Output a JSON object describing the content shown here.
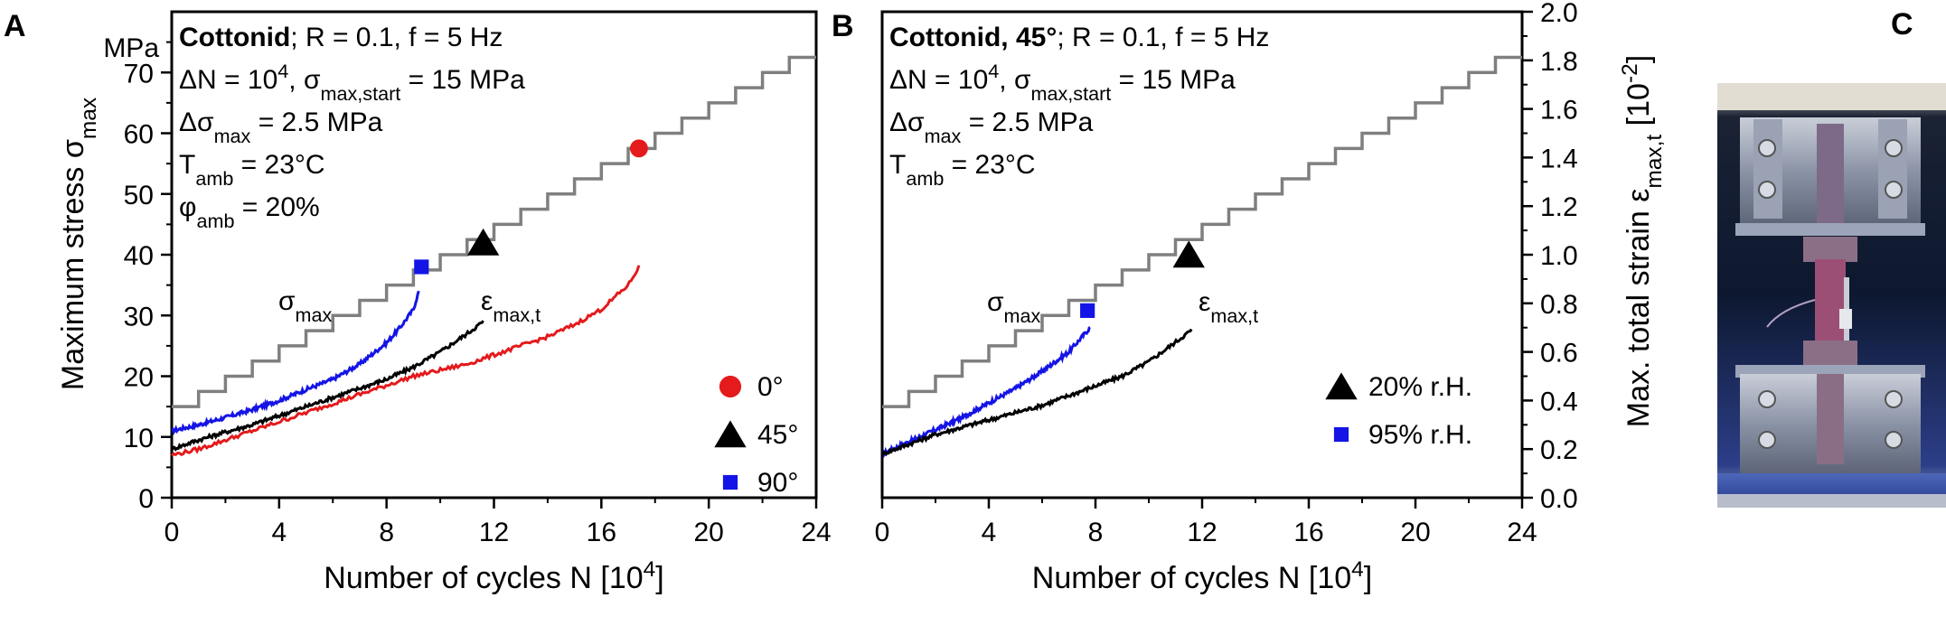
{
  "panels": {
    "a": "A",
    "b": "B",
    "c": "C"
  },
  "chart_data": [
    {
      "type": "line",
      "panel": "A",
      "xlabel": "Number of cycles N [10^4]",
      "ylabel": "Maximum stress σmax",
      "yunit": "MPa",
      "xlim": [
        0,
        24
      ],
      "ylim": [
        0,
        80
      ],
      "xticks": [
        0,
        4,
        8,
        12,
        16,
        20,
        24
      ],
      "yticks": [
        0,
        10,
        20,
        30,
        40,
        50,
        60,
        70
      ],
      "annotation_lines": [
        {
          "bold": "Cottonid",
          "rest": "; R = 0.1, f = 5 Hz"
        },
        {
          "text": "ΔN = 10^4, σmax,start = 15 MPa"
        },
        {
          "text": "Δσmax = 2.5 MPa"
        },
        {
          "text": "Tamb = 23°C"
        },
        {
          "text": "φamb = 20%"
        }
      ],
      "labels": {
        "stress": "σmax",
        "strain": "εmax,t"
      },
      "stress_steps": {
        "start": 15,
        "step": 2.5,
        "interval": 1,
        "n_end": 24
      },
      "series": [
        {
          "name": "90°",
          "color": "#1414e6",
          "marker": "square",
          "x": [
            0,
            1,
            2,
            3,
            4,
            5,
            6,
            7,
            8,
            8.5,
            9,
            9.2
          ],
          "y": [
            11,
            12,
            13.2,
            14.5,
            16,
            17.8,
            19.5,
            22,
            25.5,
            28,
            31,
            34
          ],
          "end_marker": {
            "x": 9.3,
            "y": 38
          }
        },
        {
          "name": "45°",
          "color": "#000000",
          "marker": "triangle",
          "x": [
            0,
            1,
            2,
            3,
            4,
            5,
            6,
            7,
            8,
            9,
            10,
            11,
            11.6
          ],
          "y": [
            8,
            9.5,
            10.8,
            12,
            13.5,
            15,
            16.5,
            18,
            19.5,
            21.5,
            24,
            27,
            29
          ],
          "end_marker": {
            "x": 11.6,
            "y": 42
          }
        },
        {
          "name": "0°",
          "color": "#e41a1c",
          "marker": "circle",
          "x": [
            0,
            1,
            2,
            3,
            4,
            5,
            6,
            7,
            8,
            9,
            10,
            11,
            12,
            13,
            14,
            15,
            16,
            17,
            17.4
          ],
          "y": [
            7,
            8,
            9.5,
            11,
            12.5,
            14,
            15.5,
            17,
            18.5,
            20,
            21,
            22,
            23.5,
            25,
            26.5,
            28.5,
            31,
            35,
            38
          ],
          "end_marker": {
            "x": 17.4,
            "y": 57.5
          }
        }
      ],
      "legend": [
        {
          "label": "0°",
          "marker": "circle",
          "color": "#e41a1c"
        },
        {
          "label": "45°",
          "marker": "triangle",
          "color": "#000000"
        },
        {
          "label": "90°",
          "marker": "square",
          "color": "#1414e6"
        }
      ]
    },
    {
      "type": "line",
      "panel": "B",
      "xlabel": "Number of cycles N [10^4]",
      "ylabel": "Max. total strain εmax,t [10^-2]",
      "xlim": [
        0,
        24
      ],
      "ylim": [
        0,
        2.0
      ],
      "xticks": [
        0,
        4,
        8,
        12,
        16,
        20,
        24
      ],
      "yticks": [
        "0.0",
        "0.2",
        "0.4",
        "0.6",
        "0.8",
        "1.0",
        "1.2",
        "1.4",
        "1.6",
        "1.8",
        "2.0"
      ],
      "annotation_lines": [
        {
          "bold": "Cottonid, 45°",
          "rest": "; R = 0.1, f = 5 Hz"
        },
        {
          "text": "ΔN = 10^4, σmax,start = 15 MPa"
        },
        {
          "text": "Δσmax = 2.5 MPa"
        },
        {
          "text": "Tamb = 23°C"
        }
      ],
      "labels": {
        "stress": "σmax",
        "strain": "εmax,t"
      },
      "stress_steps": {
        "start": 15,
        "step": 2.5,
        "interval": 1,
        "n_end": 24
      },
      "series": [
        {
          "name": "95% r.H.",
          "color": "#1414e6",
          "marker": "square",
          "x": [
            0,
            1,
            2,
            3,
            4,
            5,
            6,
            7,
            7.8
          ],
          "y": [
            0.18,
            0.23,
            0.28,
            0.33,
            0.39,
            0.45,
            0.52,
            0.6,
            0.7
          ],
          "end_marker": {
            "x": 7.7,
            "y": 0.77
          }
        },
        {
          "name": "20% r.H.",
          "color": "#000000",
          "marker": "triangle",
          "x": [
            0,
            1,
            2,
            3,
            4,
            5,
            6,
            7,
            8,
            9,
            10,
            11,
            11.6
          ],
          "y": [
            0.18,
            0.22,
            0.26,
            0.29,
            0.32,
            0.35,
            0.38,
            0.42,
            0.46,
            0.5,
            0.56,
            0.64,
            0.69
          ],
          "end_marker": {
            "x": 11.5,
            "y": 1.0
          }
        }
      ],
      "legend": [
        {
          "label": "20% r.H.",
          "marker": "triangle",
          "color": "#000000"
        },
        {
          "label": "95% r.H.",
          "marker": "square",
          "color": "#1414e6"
        }
      ]
    }
  ]
}
